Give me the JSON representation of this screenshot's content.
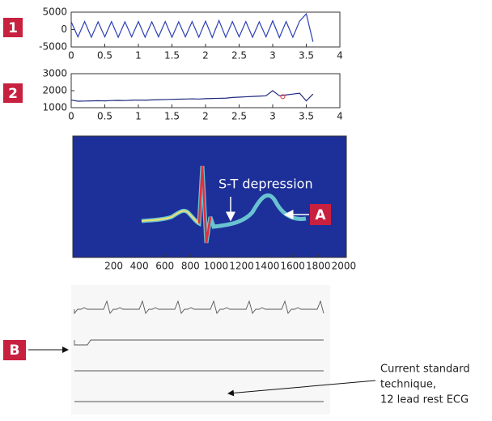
{
  "chart_data": [
    {
      "type": "line",
      "label": "1",
      "x": [
        0,
        0.1,
        0.2,
        0.3,
        0.4,
        0.5,
        0.6,
        0.7,
        0.8,
        0.9,
        1,
        1.1,
        1.2,
        1.3,
        1.4,
        1.5,
        1.6,
        1.7,
        1.8,
        1.9,
        2,
        2.1,
        2.2,
        2.3,
        2.4,
        2.5,
        2.6,
        2.7,
        2.8,
        2.9,
        3,
        3.1,
        3.2,
        3.3,
        3.4,
        3.5,
        3.6
      ],
      "series": [
        {
          "color": "#2b3fb5",
          "values": [
            2200,
            -2100,
            2300,
            -2200,
            2200,
            -2100,
            2300,
            -2200,
            2200,
            -2100,
            2300,
            -2200,
            2200,
            -2100,
            2300,
            -2200,
            2200,
            -2100,
            2300,
            -2200,
            2400,
            -2300,
            2600,
            -2200,
            2300,
            -2100,
            2300,
            -2200,
            2200,
            -2100,
            2500,
            -2300,
            2300,
            -2200,
            2400,
            4500,
            -3500
          ]
        }
      ],
      "xlim": [
        0,
        4
      ],
      "xticks": [
        0,
        0.5,
        1,
        1.5,
        2,
        2.5,
        3,
        3.5,
        4
      ],
      "ylim": [
        -5000,
        5000
      ],
      "yticks": [
        -5000,
        0,
        5000
      ]
    },
    {
      "type": "line",
      "label": "2",
      "x": [
        0,
        0.1,
        0.2,
        0.3,
        0.4,
        0.5,
        0.6,
        0.7,
        0.8,
        0.9,
        1,
        1.1,
        1.2,
        1.3,
        1.4,
        1.5,
        1.6,
        1.7,
        1.8,
        1.9,
        2,
        2.1,
        2.2,
        2.3,
        2.4,
        2.5,
        2.6,
        2.7,
        2.8,
        2.9,
        3,
        3.1,
        3.2,
        3.3,
        3.4,
        3.5,
        3.6
      ],
      "series": [
        {
          "color": "#1f2a80",
          "values": [
            1450,
            1380,
            1390,
            1400,
            1410,
            1400,
            1420,
            1430,
            1420,
            1440,
            1450,
            1440,
            1460,
            1470,
            1480,
            1490,
            1500,
            1510,
            1520,
            1510,
            1530,
            1540,
            1550,
            1560,
            1600,
            1620,
            1640,
            1660,
            1680,
            1700,
            2000,
            1700,
            1750,
            1800,
            1850,
            1400,
            1800
          ]
        }
      ],
      "highlight": {
        "x": 3.15,
        "y": 1650,
        "color": "#e03030"
      },
      "xlim": [
        0,
        4
      ],
      "xticks": [
        0,
        0.5,
        1,
        1.5,
        2,
        2.5,
        3,
        3.5,
        4
      ],
      "ylim": [
        1000,
        3000
      ],
      "yticks": [
        1000,
        2000,
        3000
      ]
    },
    {
      "type": "heatmap",
      "color": "#1d2f98",
      "annotation": "S-T depression",
      "label": "A",
      "xlim": [
        -120,
        2020
      ],
      "xticks": [
        200,
        400,
        600,
        800,
        1000,
        1200,
        1400,
        1600,
        1800,
        2000
      ]
    }
  ],
  "ecg_panel": {
    "label": "B",
    "caption": [
      "Current standard",
      "technique,",
      "12 lead rest ECG"
    ]
  }
}
